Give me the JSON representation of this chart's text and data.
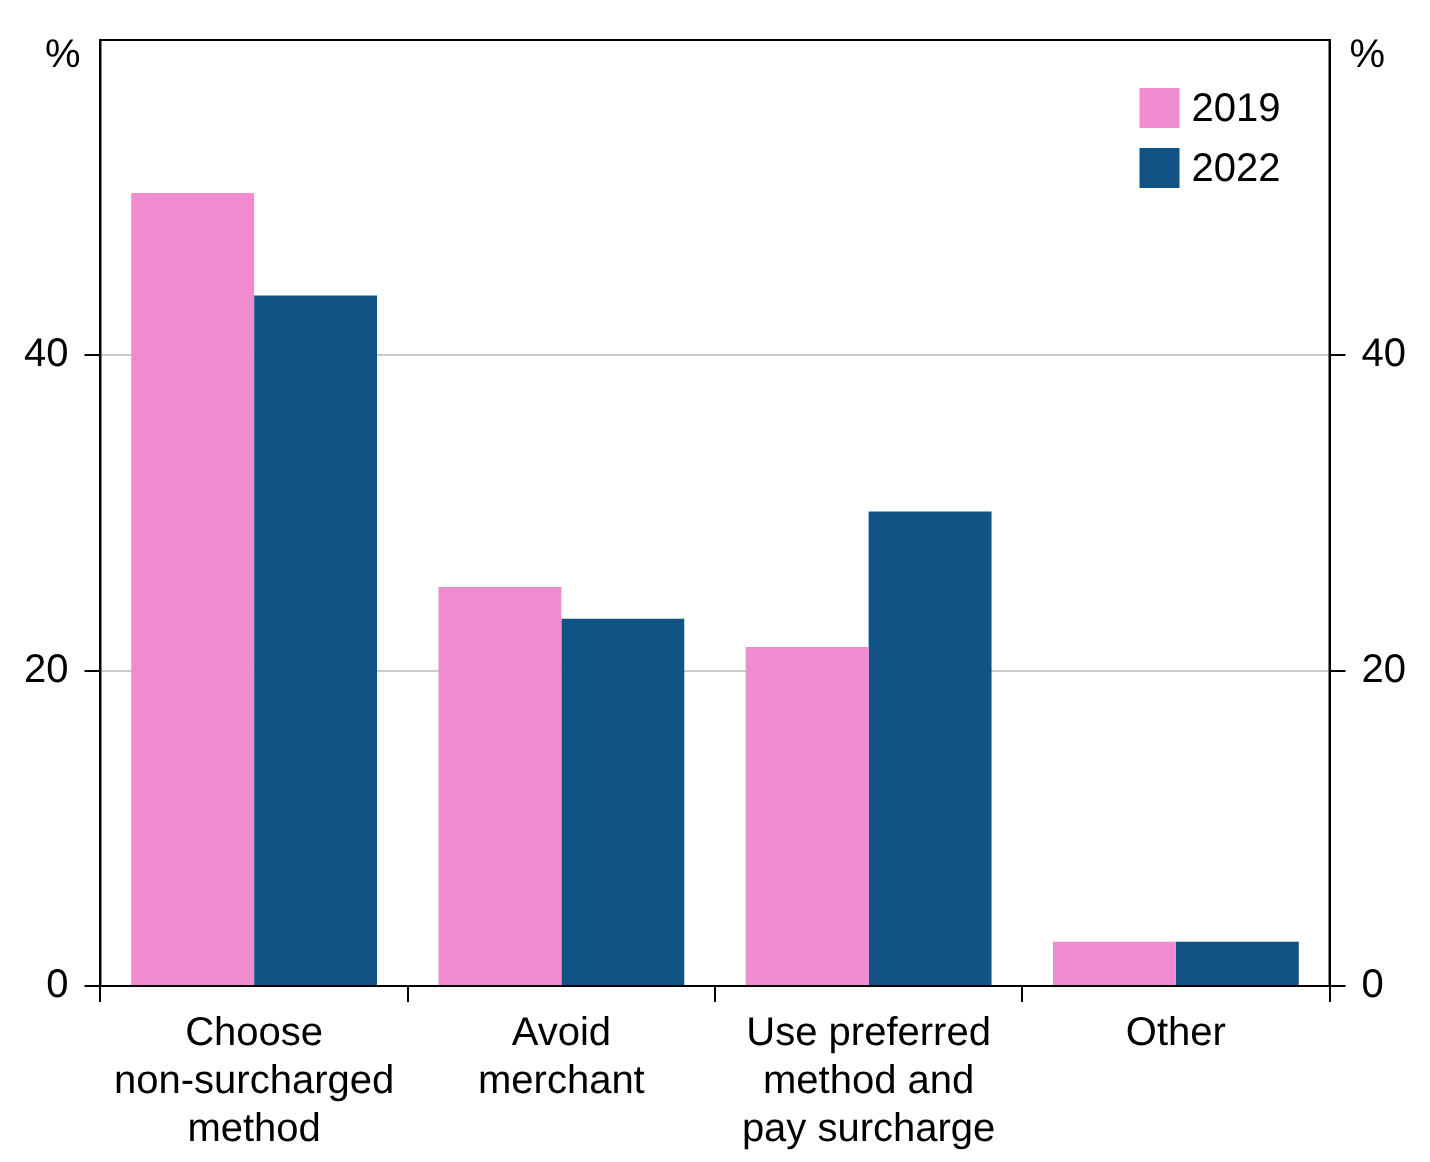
{
  "chart_data": {
    "type": "bar",
    "ylabel": "%",
    "y2label": "%",
    "categories": [
      "Choose non-surcharged method",
      "Avoid merchant",
      "Use preferred method and pay surcharge",
      "Other"
    ],
    "series": [
      {
        "name": "2019",
        "color": "#f08bd0",
        "values": [
          50.3,
          25.3,
          21.5,
          2.8
        ]
      },
      {
        "name": "2022",
        "color": "#105384",
        "values": [
          43.8,
          23.3,
          30.1,
          2.8
        ]
      }
    ],
    "ylim": [
      0,
      60
    ],
    "yticks": [
      0,
      20,
      40
    ],
    "y2lim": [
      0,
      60
    ],
    "y2ticks": [
      0,
      20,
      40
    ],
    "grid": "y",
    "legend": "top right"
  }
}
